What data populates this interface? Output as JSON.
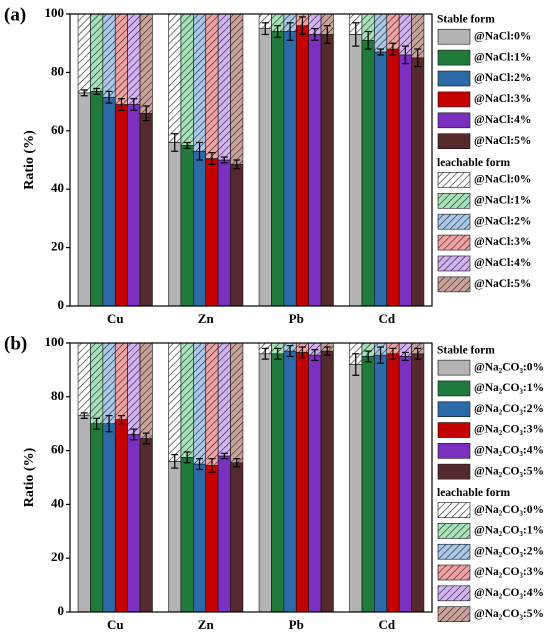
{
  "chart_data": [
    {
      "type": "bar",
      "stacked": true,
      "panel_label": "(a)",
      "ylabel": "Ratio (%)",
      "categories": [
        "Cu",
        "Zn",
        "Pb",
        "Cd"
      ],
      "ylim": [
        0,
        100
      ],
      "yticks": [
        0,
        20,
        40,
        60,
        80,
        100
      ],
      "series_groups": [
        {
          "name": "Stable form",
          "series": [
            {
              "name": "@NaCl:0%",
              "color": "#b3b3b3",
              "values": [
                73,
                56,
                95,
                93
              ],
              "errors": [
                1,
                3,
                2,
                4
              ]
            },
            {
              "name": "@NaCl:1%",
              "color": "#1f7a3c",
              "values": [
                73.5,
                55,
                94,
                91
              ],
              "errors": [
                1,
                1,
                2,
                3
              ]
            },
            {
              "name": "@NaCl:2%",
              "color": "#2d6aa8",
              "values": [
                71.5,
                53,
                94,
                87
              ],
              "errors": [
                2,
                3,
                3,
                1
              ]
            },
            {
              "name": "@NaCl:3%",
              "color": "#c40000",
              "values": [
                69,
                50.5,
                96,
                88
              ],
              "errors": [
                2,
                2,
                3,
                2
              ]
            },
            {
              "name": "@NaCl:4%",
              "color": "#7b30c0",
              "values": [
                69,
                50,
                93,
                86
              ],
              "errors": [
                2,
                1,
                2,
                3
              ]
            },
            {
              "name": "@NaCl:5%",
              "color": "#552a2c",
              "values": [
                66,
                48.5,
                93,
                85
              ],
              "errors": [
                2.5,
                1.5,
                3,
                3
              ]
            }
          ]
        },
        {
          "name": "leachable form",
          "hatch": true,
          "series": [
            {
              "name": "@NaCl:0%",
              "color": "#ffffff",
              "values": [
                27,
                44,
                5,
                7
              ]
            },
            {
              "name": "@NaCl:1%",
              "color": "#a6e2b8",
              "values": [
                26.5,
                45,
                6,
                9
              ]
            },
            {
              "name": "@NaCl:2%",
              "color": "#a9c8ea",
              "values": [
                28.5,
                47,
                6,
                13
              ]
            },
            {
              "name": "@NaCl:3%",
              "color": "#f2a2a2",
              "values": [
                31,
                49.5,
                4,
                12
              ]
            },
            {
              "name": "@NaCl:4%",
              "color": "#d2b2f2",
              "values": [
                31,
                50,
                7,
                14
              ]
            },
            {
              "name": "@NaCl:5%",
              "color": "#c9a29a",
              "values": [
                34,
                51.5,
                7,
                15
              ]
            }
          ]
        }
      ]
    },
    {
      "type": "bar",
      "stacked": true,
      "panel_label": "(b)",
      "ylabel": "Ratio (%)",
      "categories": [
        "Cu",
        "Zn",
        "Pb",
        "Cd"
      ],
      "ylim": [
        0,
        100
      ],
      "yticks": [
        0,
        20,
        40,
        60,
        80,
        100
      ],
      "series_groups": [
        {
          "name": "Stable form",
          "series": [
            {
              "name": "@Na₂CO₃:0%",
              "color": "#b3b3b3",
              "values": [
                73,
                56,
                96,
                92
              ],
              "errors": [
                1,
                2.5,
                2,
                4
              ]
            },
            {
              "name": "@Na₂CO₃:1%",
              "color": "#1f7a3c",
              "values": [
                70,
                57.5,
                96,
                95
              ],
              "errors": [
                2,
                2,
                2,
                2
              ]
            },
            {
              "name": "@Na₂CO₃:2%",
              "color": "#2d6aa8",
              "values": [
                70,
                55,
                97,
                95.5
              ],
              "errors": [
                3,
                2,
                2,
                3
              ]
            },
            {
              "name": "@Na₂CO₃:3%",
              "color": "#c40000",
              "values": [
                71.5,
                54.5,
                96.5,
                96
              ],
              "errors": [
                1.5,
                2.5,
                2,
                2
              ]
            },
            {
              "name": "@Na₂CO₃:4%",
              "color": "#7b30c0",
              "values": [
                66,
                58,
                95.5,
                95
              ],
              "errors": [
                2,
                1,
                2,
                1.5
              ]
            },
            {
              "name": "@Na₂CO₃:5%",
              "color": "#552a2c",
              "values": [
                64.5,
                55.5,
                97,
                96
              ],
              "errors": [
                2,
                1.5,
                1.5,
                2
              ]
            }
          ]
        },
        {
          "name": "leachable form",
          "hatch": true,
          "series": [
            {
              "name": "@Na₂CO₃:0%",
              "color": "#ffffff",
              "values": [
                27,
                44,
                4,
                8
              ]
            },
            {
              "name": "@Na₂CO₃:1%",
              "color": "#a6e2b8",
              "values": [
                30,
                42.5,
                4,
                5
              ]
            },
            {
              "name": "@Na₂CO₃:2%",
              "color": "#a9c8ea",
              "values": [
                30,
                45,
                3,
                4.5
              ]
            },
            {
              "name": "@Na₂CO₃:3%",
              "color": "#f2a2a2",
              "values": [
                28.5,
                45.5,
                3.5,
                4
              ]
            },
            {
              "name": "@Na₂CO₃:4%",
              "color": "#d2b2f2",
              "values": [
                34,
                42,
                4.5,
                5
              ]
            },
            {
              "name": "@Na₂CO₃:5%",
              "color": "#c9a29a",
              "values": [
                35.5,
                44.5,
                3,
                4
              ]
            }
          ]
        }
      ]
    }
  ]
}
